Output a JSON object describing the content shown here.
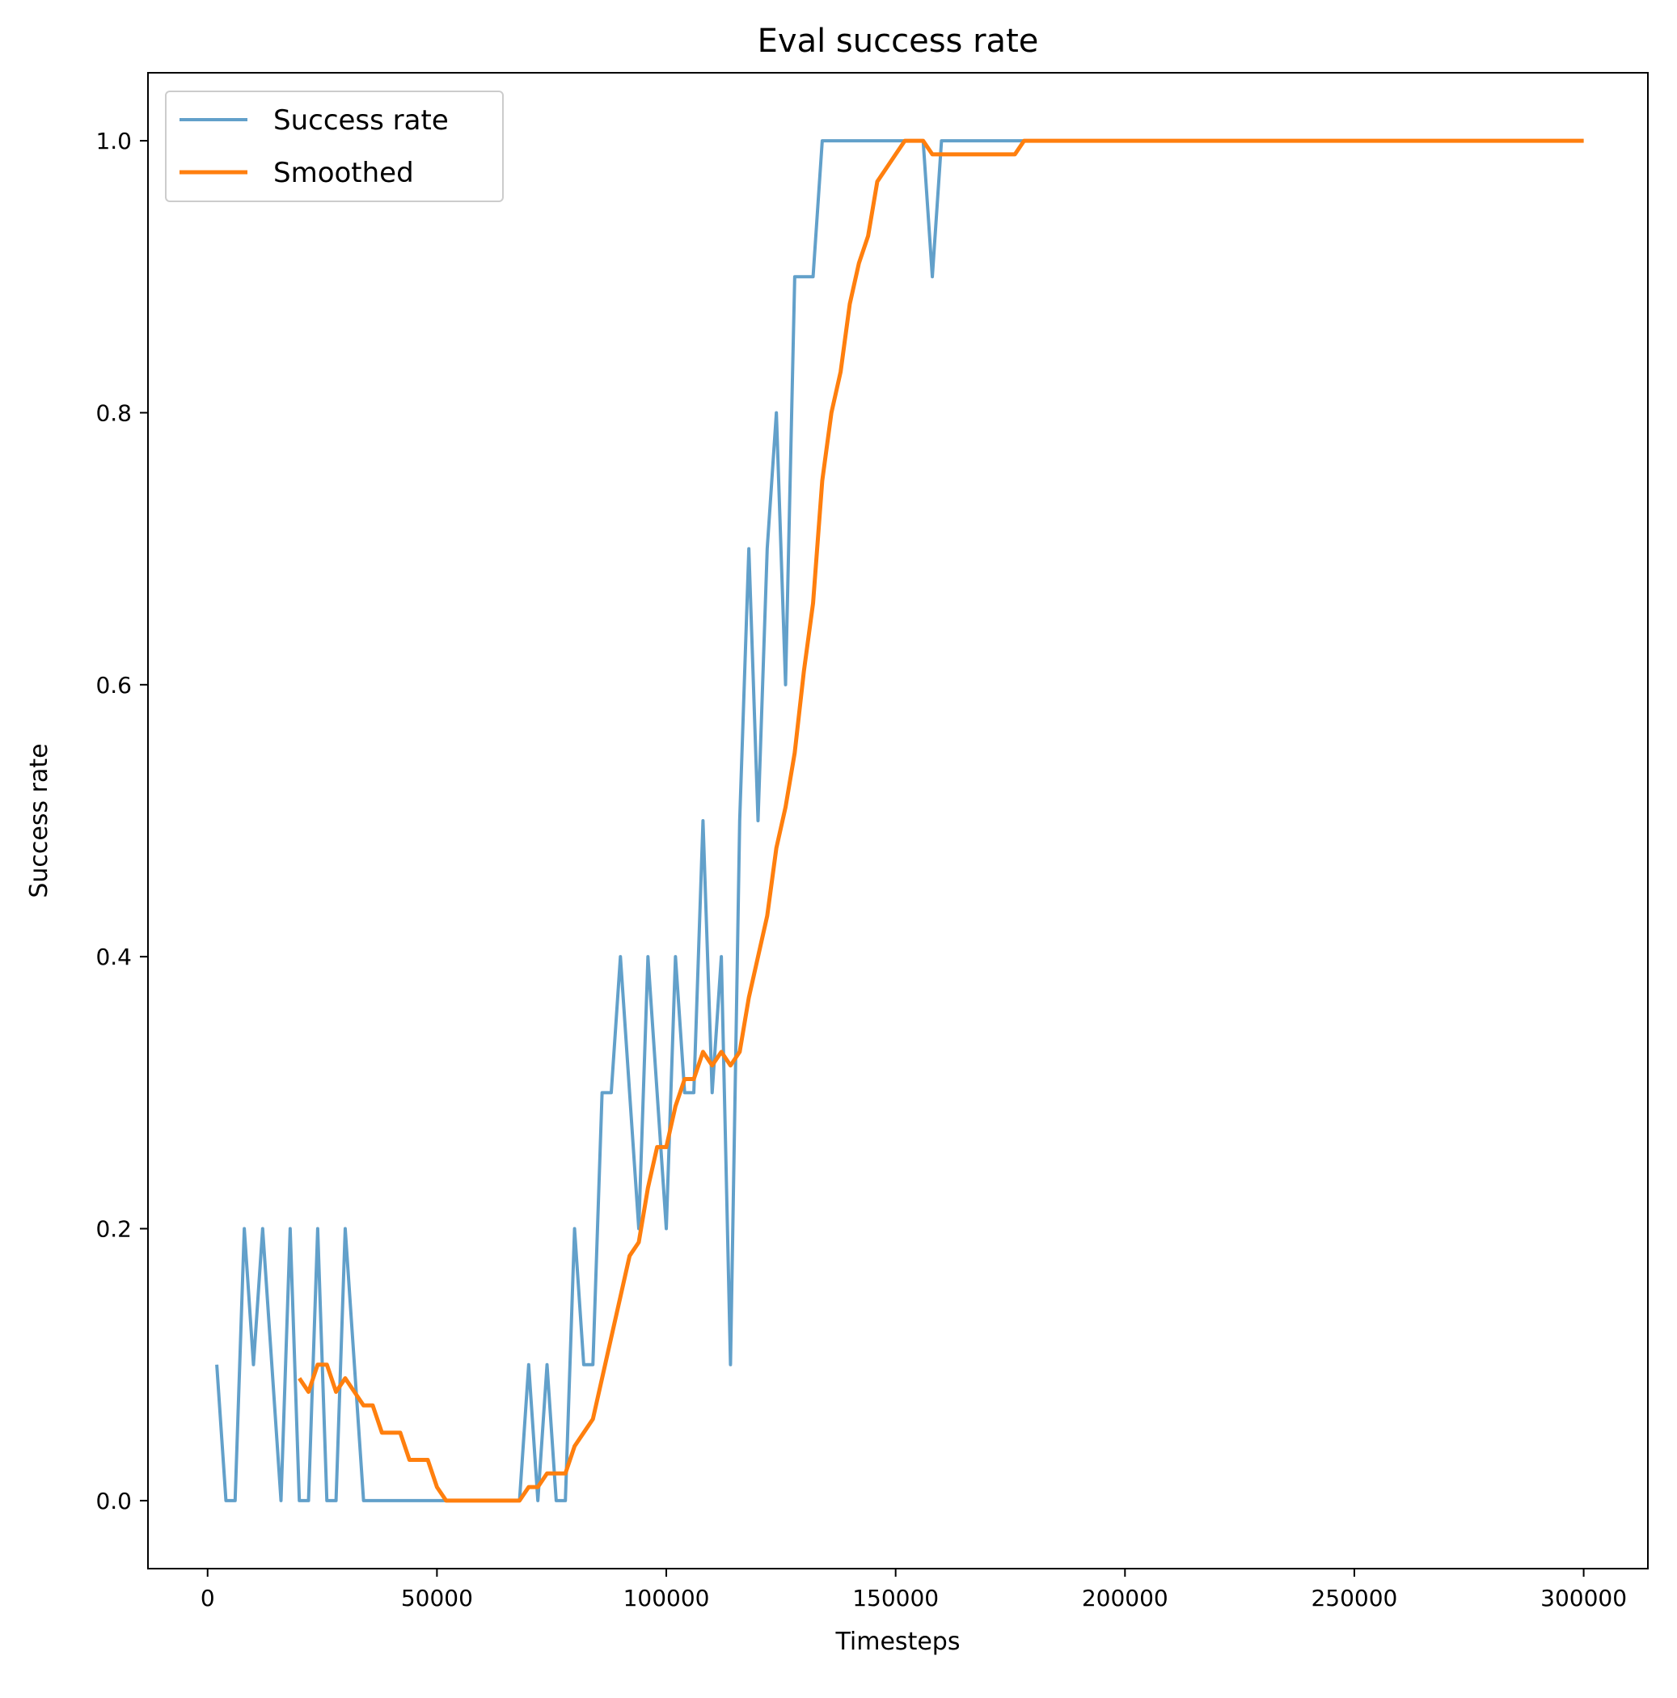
{
  "chart_data": {
    "type": "line",
    "title": "Eval success rate",
    "xlabel": "Timesteps",
    "ylabel": "Success rate",
    "xlim": [
      -13000,
      314000
    ],
    "ylim": [
      -0.05,
      1.05
    ],
    "xticks": [
      0,
      50000,
      100000,
      150000,
      200000,
      250000,
      300000
    ],
    "xtick_labels": [
      "0",
      "50000",
      "100000",
      "150000",
      "200000",
      "250000",
      "300000"
    ],
    "yticks": [
      0.0,
      0.2,
      0.4,
      0.6,
      0.8,
      1.0
    ],
    "ytick_labels": [
      "0.0",
      "0.2",
      "0.4",
      "0.6",
      "0.8",
      "1.0"
    ],
    "grid": false,
    "legend": "top-left",
    "series": [
      {
        "name": "Success rate",
        "color": "#1f77b4",
        "opacity": 0.7,
        "x": [
          2000,
          4000,
          6000,
          8000,
          10000,
          12000,
          14000,
          16000,
          18000,
          20000,
          22000,
          24000,
          26000,
          28000,
          30000,
          32000,
          34000,
          36000,
          38000,
          40000,
          42000,
          44000,
          46000,
          48000,
          50000,
          52000,
          54000,
          56000,
          58000,
          60000,
          62000,
          64000,
          66000,
          68000,
          70000,
          72000,
          74000,
          76000,
          78000,
          80000,
          82000,
          84000,
          86000,
          88000,
          90000,
          92000,
          94000,
          96000,
          98000,
          100000,
          102000,
          104000,
          106000,
          108000,
          110000,
          112000,
          114000,
          116000,
          118000,
          120000,
          122000,
          124000,
          126000,
          128000,
          130000,
          132000,
          134000,
          136000,
          138000,
          140000,
          142000,
          144000,
          146000,
          148000,
          150000,
          152000,
          154000,
          156000,
          158000,
          160000,
          162000,
          164000,
          166000,
          168000,
          170000,
          172000,
          174000,
          176000,
          178000,
          180000,
          190000,
          200000,
          210000,
          220000,
          230000,
          240000,
          250000,
          260000,
          270000,
          280000,
          290000,
          300000
        ],
        "y": [
          0.1,
          0.0,
          0.0,
          0.2,
          0.1,
          0.2,
          0.1,
          0.0,
          0.2,
          0.0,
          0.0,
          0.2,
          0.0,
          0.0,
          0.2,
          0.1,
          0.0,
          0.0,
          0.0,
          0.0,
          0.0,
          0.0,
          0.0,
          0.0,
          0.0,
          0.0,
          0.0,
          0.0,
          0.0,
          0.0,
          0.0,
          0.0,
          0.0,
          0.0,
          0.1,
          0.0,
          0.1,
          0.0,
          0.0,
          0.2,
          0.1,
          0.1,
          0.3,
          0.3,
          0.4,
          0.3,
          0.2,
          0.4,
          0.3,
          0.2,
          0.4,
          0.3,
          0.3,
          0.5,
          0.3,
          0.4,
          0.1,
          0.5,
          0.7,
          0.5,
          0.7,
          0.8,
          0.6,
          0.9,
          0.9,
          0.9,
          1.0,
          1.0,
          1.0,
          1.0,
          1.0,
          1.0,
          1.0,
          1.0,
          1.0,
          1.0,
          1.0,
          1.0,
          0.9,
          1.0,
          1.0,
          1.0,
          1.0,
          1.0,
          1.0,
          1.0,
          1.0,
          1.0,
          1.0,
          1.0,
          1.0,
          1.0,
          1.0,
          1.0,
          1.0,
          1.0,
          1.0,
          1.0,
          1.0,
          1.0,
          1.0,
          1.0
        ]
      },
      {
        "name": "Smoothed",
        "color": "#ff7f0e",
        "opacity": 1.0,
        "x": [
          20000,
          22000,
          24000,
          26000,
          28000,
          30000,
          32000,
          34000,
          36000,
          38000,
          40000,
          42000,
          44000,
          46000,
          48000,
          50000,
          52000,
          54000,
          56000,
          58000,
          60000,
          62000,
          64000,
          66000,
          68000,
          70000,
          72000,
          74000,
          76000,
          78000,
          80000,
          82000,
          84000,
          86000,
          88000,
          90000,
          92000,
          94000,
          96000,
          98000,
          100000,
          102000,
          104000,
          106000,
          108000,
          110000,
          112000,
          114000,
          116000,
          118000,
          120000,
          122000,
          124000,
          126000,
          128000,
          130000,
          132000,
          134000,
          136000,
          138000,
          140000,
          142000,
          144000,
          146000,
          148000,
          150000,
          152000,
          154000,
          156000,
          158000,
          160000,
          162000,
          164000,
          166000,
          168000,
          170000,
          172000,
          174000,
          176000,
          178000,
          180000,
          190000,
          200000,
          210000,
          220000,
          230000,
          240000,
          250000,
          260000,
          270000,
          280000,
          290000,
          300000
        ],
        "y": [
          0.09,
          0.08,
          0.1,
          0.1,
          0.08,
          0.09,
          0.08,
          0.07,
          0.07,
          0.05,
          0.05,
          0.05,
          0.03,
          0.03,
          0.03,
          0.01,
          0.0,
          0.0,
          0.0,
          0.0,
          0.0,
          0.0,
          0.0,
          0.0,
          0.0,
          0.01,
          0.01,
          0.02,
          0.02,
          0.02,
          0.04,
          0.05,
          0.06,
          0.09,
          0.12,
          0.15,
          0.18,
          0.19,
          0.23,
          0.26,
          0.26,
          0.29,
          0.31,
          0.31,
          0.33,
          0.32,
          0.33,
          0.32,
          0.33,
          0.37,
          0.4,
          0.43,
          0.48,
          0.51,
          0.55,
          0.61,
          0.66,
          0.75,
          0.8,
          0.83,
          0.88,
          0.91,
          0.93,
          0.97,
          0.98,
          0.99,
          1.0,
          1.0,
          1.0,
          0.99,
          0.99,
          0.99,
          0.99,
          0.99,
          0.99,
          0.99,
          0.99,
          0.99,
          0.99,
          1.0,
          1.0,
          1.0,
          1.0,
          1.0,
          1.0,
          1.0,
          1.0,
          1.0,
          1.0,
          1.0,
          1.0,
          1.0,
          1.0
        ]
      }
    ]
  }
}
